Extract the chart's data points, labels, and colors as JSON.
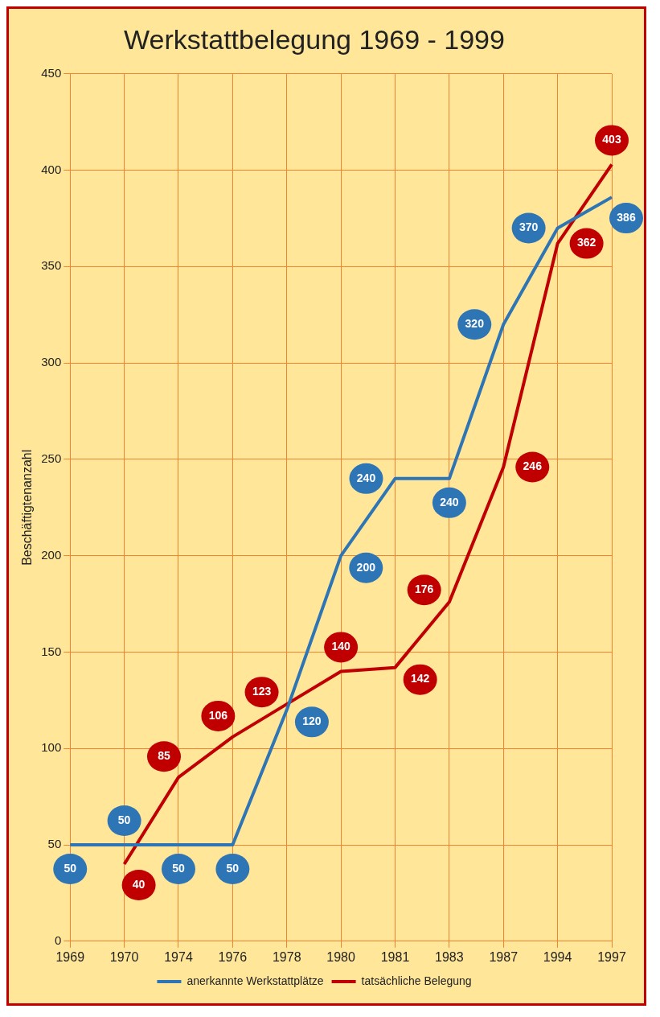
{
  "chart_data": {
    "type": "line",
    "title": "Werkstattbelegung 1969 - 1999",
    "ylabel": "Beschäftigtenanzahl",
    "categories": [
      "1969",
      "1970",
      "1974",
      "1976",
      "1978",
      "1980",
      "1981",
      "1983",
      "1987",
      "1994",
      "1997"
    ],
    "series": [
      {
        "name": "anerkannte Werkstattplätze",
        "color": "#2e75b6",
        "values": [
          50,
          50,
          50,
          50,
          120,
          200,
          240,
          240,
          320,
          370,
          386
        ]
      },
      {
        "name": "tatsächliche Belegung",
        "color": "#c00000",
        "values": [
          null,
          40,
          85,
          106,
          123,
          140,
          142,
          176,
          246,
          362,
          403
        ]
      }
    ],
    "ylim": [
      0,
      450
    ],
    "yticks": [
      0,
      50,
      100,
      150,
      200,
      250,
      300,
      350,
      400,
      450
    ],
    "grid": true,
    "legend": "bottom",
    "marker": "none",
    "line_style": "solid",
    "data_labels": true
  }
}
